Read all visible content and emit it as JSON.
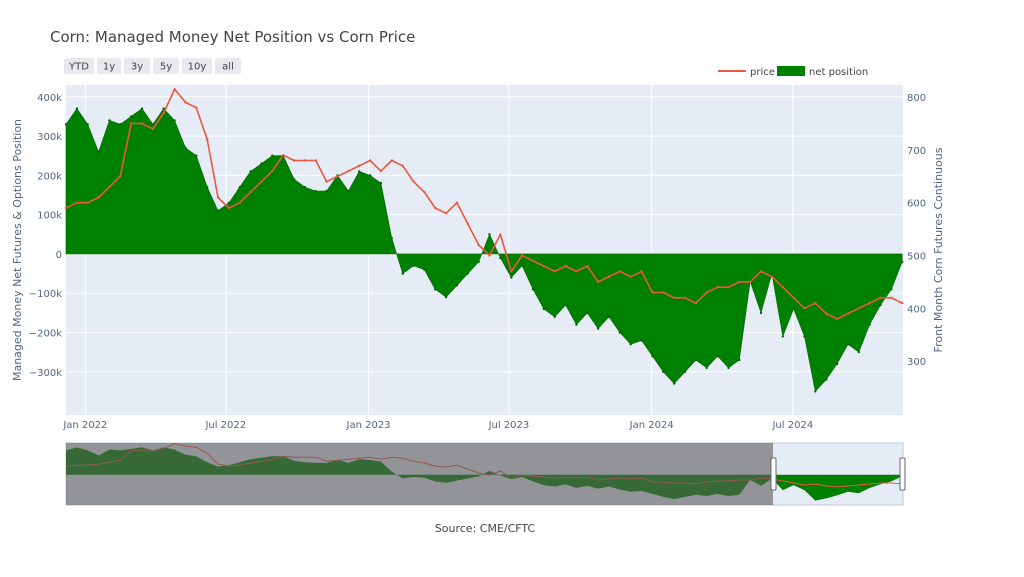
{
  "chart_data": {
    "type": "area+line",
    "title": "Corn: Managed Money Net Position vs Corn Price",
    "source": "Source: CME/CFTC",
    "y_left_label": "Managed Money Net Futures & Options Position",
    "y_right_label": "Front Month Corn Futures Continuous",
    "range_buttons": [
      "YTD",
      "1y",
      "3y",
      "5y",
      "10y",
      "all"
    ],
    "legend": [
      {
        "name": "price",
        "color": "#e9573f"
      },
      {
        "name": "net position",
        "color": "#008000"
      }
    ],
    "x_ticks": [
      {
        "date": "2022-01-01",
        "label": "Jan 2022"
      },
      {
        "date": "2022-07-01",
        "label": "Jul 2022"
      },
      {
        "date": "2023-01-01",
        "label": "Jan 2023"
      },
      {
        "date": "2023-07-01",
        "label": "Jul 2023"
      },
      {
        "date": "2024-01-01",
        "label": "Jan 2024"
      },
      {
        "date": "2024-07-01",
        "label": "Jul 2024"
      }
    ],
    "x_range": [
      "2021-12-07",
      "2024-11-20"
    ],
    "y_left_range": [
      -410000,
      430000
    ],
    "y_left_ticks": [
      {
        "value": 400000,
        "label": "400k"
      },
      {
        "value": 300000,
        "label": "300k"
      },
      {
        "value": 200000,
        "label": "200k"
      },
      {
        "value": 100000,
        "label": "100k"
      },
      {
        "value": 0,
        "label": "0"
      },
      {
        "value": -100000,
        "label": "−100k"
      },
      {
        "value": -200000,
        "label": "−200k"
      },
      {
        "value": -300000,
        "label": "−300k"
      }
    ],
    "y_right_range": [
      198,
      823
    ],
    "y_right_ticks": [
      {
        "value": 800,
        "label": "800"
      },
      {
        "value": 700,
        "label": "700"
      },
      {
        "value": 600,
        "label": "600"
      },
      {
        "value": 500,
        "label": "500"
      },
      {
        "value": 400,
        "label": "400"
      },
      {
        "value": 300,
        "label": "300"
      }
    ],
    "net_position": {
      "name": "net position",
      "color": "#008000",
      "x": [
        "2021-12-07",
        "2021-12-21",
        "2022-01-04",
        "2022-01-18",
        "2022-02-01",
        "2022-02-15",
        "2022-03-01",
        "2022-03-15",
        "2022-03-29",
        "2022-04-12",
        "2022-04-26",
        "2022-05-10",
        "2022-05-24",
        "2022-06-07",
        "2022-06-21",
        "2022-07-05",
        "2022-07-19",
        "2022-08-02",
        "2022-08-16",
        "2022-08-30",
        "2022-09-13",
        "2022-09-27",
        "2022-10-11",
        "2022-10-25",
        "2022-11-08",
        "2022-11-22",
        "2022-12-06",
        "2022-12-20",
        "2023-01-03",
        "2023-01-17",
        "2023-01-31",
        "2023-02-14",
        "2023-02-28",
        "2023-03-14",
        "2023-03-28",
        "2023-04-11",
        "2023-04-25",
        "2023-05-09",
        "2023-05-23",
        "2023-06-06",
        "2023-06-20",
        "2023-07-04",
        "2023-07-18",
        "2023-08-01",
        "2023-08-15",
        "2023-08-29",
        "2023-09-12",
        "2023-09-26",
        "2023-10-10",
        "2023-10-24",
        "2023-11-07",
        "2023-11-21",
        "2023-12-05",
        "2023-12-19",
        "2024-01-02",
        "2024-01-16",
        "2024-01-30",
        "2024-02-13",
        "2024-02-27",
        "2024-03-12",
        "2024-03-26",
        "2024-04-09",
        "2024-04-23",
        "2024-05-07",
        "2024-05-21",
        "2024-06-04",
        "2024-06-18",
        "2024-07-02",
        "2024-07-16",
        "2024-07-30",
        "2024-08-13",
        "2024-08-27",
        "2024-09-10",
        "2024-09-24",
        "2024-10-08",
        "2024-10-22",
        "2024-11-05",
        "2024-11-19"
      ],
      "values": [
        330000,
        370000,
        330000,
        260000,
        340000,
        330000,
        350000,
        370000,
        330000,
        370000,
        340000,
        270000,
        250000,
        170000,
        110000,
        130000,
        170000,
        210000,
        230000,
        250000,
        250000,
        190000,
        170000,
        160000,
        160000,
        200000,
        160000,
        210000,
        200000,
        180000,
        40000,
        -50000,
        -30000,
        -40000,
        -90000,
        -110000,
        -80000,
        -50000,
        -20000,
        50000,
        -10000,
        -60000,
        -30000,
        -90000,
        -140000,
        -160000,
        -130000,
        -180000,
        -150000,
        -190000,
        -160000,
        -200000,
        -230000,
        -220000,
        -260000,
        -300000,
        -330000,
        -300000,
        -270000,
        -290000,
        -260000,
        -290000,
        -270000,
        -70000,
        -150000,
        -50000,
        -210000,
        -140000,
        -210000,
        -350000,
        -320000,
        -280000,
        -230000,
        -250000,
        -180000,
        -130000,
        -90000,
        -20000
      ]
    },
    "price": {
      "name": "price",
      "color": "#e9573f",
      "x": [
        "2021-12-07",
        "2021-12-21",
        "2022-01-04",
        "2022-01-18",
        "2022-02-01",
        "2022-02-15",
        "2022-03-01",
        "2022-03-15",
        "2022-03-29",
        "2022-04-12",
        "2022-04-26",
        "2022-05-10",
        "2022-05-24",
        "2022-06-07",
        "2022-06-21",
        "2022-07-05",
        "2022-07-19",
        "2022-08-02",
        "2022-08-16",
        "2022-08-30",
        "2022-09-13",
        "2022-09-27",
        "2022-10-11",
        "2022-10-25",
        "2022-11-08",
        "2022-11-22",
        "2022-12-06",
        "2022-12-20",
        "2023-01-03",
        "2023-01-17",
        "2023-01-31",
        "2023-02-14",
        "2023-02-28",
        "2023-03-14",
        "2023-03-28",
        "2023-04-11",
        "2023-04-25",
        "2023-05-09",
        "2023-05-23",
        "2023-06-06",
        "2023-06-20",
        "2023-07-04",
        "2023-07-18",
        "2023-08-01",
        "2023-08-15",
        "2023-08-29",
        "2023-09-12",
        "2023-09-26",
        "2023-10-10",
        "2023-10-24",
        "2023-11-07",
        "2023-11-21",
        "2023-12-05",
        "2023-12-19",
        "2024-01-02",
        "2024-01-16",
        "2024-01-30",
        "2024-02-13",
        "2024-02-27",
        "2024-03-12",
        "2024-03-26",
        "2024-04-09",
        "2024-04-23",
        "2024-05-07",
        "2024-05-21",
        "2024-06-04",
        "2024-06-18",
        "2024-07-02",
        "2024-07-16",
        "2024-07-30",
        "2024-08-13",
        "2024-08-27",
        "2024-09-10",
        "2024-09-24",
        "2024-10-08",
        "2024-10-22",
        "2024-11-05",
        "2024-11-19"
      ],
      "values": [
        590,
        600,
        600,
        610,
        630,
        650,
        750,
        750,
        740,
        770,
        815,
        790,
        780,
        720,
        610,
        590,
        600,
        620,
        640,
        660,
        690,
        680,
        680,
        680,
        640,
        650,
        660,
        670,
        680,
        660,
        680,
        670,
        640,
        620,
        590,
        580,
        600,
        560,
        520,
        500,
        540,
        470,
        500,
        490,
        480,
        470,
        480,
        470,
        480,
        450,
        460,
        470,
        460,
        470,
        430,
        430,
        420,
        420,
        410,
        430,
        440,
        440,
        450,
        450,
        470,
        460,
        440,
        420,
        400,
        410,
        390,
        380,
        390,
        400,
        410,
        420,
        420,
        410
      ]
    }
  }
}
